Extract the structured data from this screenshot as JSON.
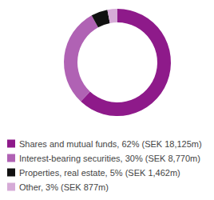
{
  "chart_data": {
    "type": "pie",
    "categories": [
      "Shares and mutual funds, 62% (SEK 18,125m)",
      "Interest-bearing securities, 30% (SEK 8,770m)",
      "Properties, real estate, 5% (SEK 1,462m)",
      "Other, 3% (SEK 877m)"
    ],
    "values": [
      62,
      30,
      5,
      3
    ],
    "colors": [
      "#8e1a8a",
      "#b062b4",
      "#111111",
      "#d6abd7"
    ],
    "legend": "bottom-left"
  }
}
